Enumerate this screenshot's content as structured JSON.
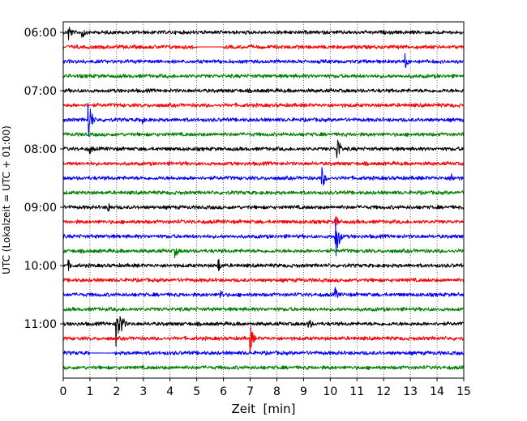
{
  "chart_data": {
    "type": "line",
    "title": "",
    "xlabel": "Zeit  [min]",
    "ylabel": "UTC (Lokalzeit = UTC + 01:00)",
    "xlim": [
      0,
      15
    ],
    "x_ticks": [
      "0",
      "1",
      "2",
      "3",
      "4",
      "5",
      "6",
      "7",
      "8",
      "9",
      "10",
      "11",
      "12",
      "13",
      "14",
      "15"
    ],
    "y_tick_labels": [
      "06:00",
      "07:00",
      "08:00",
      "09:00",
      "10:00",
      "11:00"
    ],
    "grid": "vertical dotted",
    "trace_colors": [
      "#000000",
      "#ff0000",
      "#0000ff",
      "#008000"
    ],
    "traces": [
      {
        "start": "06:00",
        "color_index": 0,
        "events": [
          {
            "t": 0.2,
            "amp": 0.7
          },
          {
            "t": 0.7,
            "amp": 0.6
          }
        ],
        "gaps": []
      },
      {
        "start": "06:15",
        "color_index": 1,
        "events": [],
        "gaps": [
          [
            5.0,
            6.0
          ]
        ]
      },
      {
        "start": "06:30",
        "color_index": 2,
        "events": [
          {
            "t": 12.8,
            "amp": 0.6
          }
        ],
        "gaps": []
      },
      {
        "start": "06:45",
        "color_index": 3,
        "events": [],
        "gaps": []
      },
      {
        "start": "07:00",
        "color_index": 0,
        "events": [],
        "gaps": []
      },
      {
        "start": "07:15",
        "color_index": 1,
        "events": [],
        "gaps": []
      },
      {
        "start": "07:30",
        "color_index": 2,
        "events": [
          {
            "t": 0.95,
            "amp": 1.6
          },
          {
            "t": 2.9,
            "amp": 0.5
          }
        ],
        "gaps": []
      },
      {
        "start": "07:45",
        "color_index": 3,
        "events": [],
        "gaps": []
      },
      {
        "start": "08:00",
        "color_index": 0,
        "events": [
          {
            "t": 10.25,
            "amp": 1.2
          },
          {
            "t": 1.0,
            "amp": 0.4
          }
        ],
        "gaps": []
      },
      {
        "start": "08:15",
        "color_index": 1,
        "events": [],
        "gaps": []
      },
      {
        "start": "08:30",
        "color_index": 2,
        "events": [
          {
            "t": 9.7,
            "amp": 0.8
          },
          {
            "t": 14.5,
            "amp": 0.6
          }
        ],
        "gaps": []
      },
      {
        "start": "08:45",
        "color_index": 3,
        "events": [],
        "gaps": []
      },
      {
        "start": "09:00",
        "color_index": 0,
        "events": [
          {
            "t": 1.7,
            "amp": 0.4
          }
        ],
        "gaps": []
      },
      {
        "start": "09:15",
        "color_index": 1,
        "events": [
          {
            "t": 10.2,
            "amp": 0.5
          }
        ],
        "gaps": []
      },
      {
        "start": "09:30",
        "color_index": 2,
        "events": [
          {
            "t": 10.2,
            "amp": 1.8
          }
        ],
        "gaps": []
      },
      {
        "start": "09:45",
        "color_index": 3,
        "events": [
          {
            "t": 4.2,
            "amp": 0.5
          }
        ],
        "gaps": []
      },
      {
        "start": "10:00",
        "color_index": 0,
        "events": [
          {
            "t": 5.8,
            "amp": 0.6
          },
          {
            "t": 0.2,
            "amp": 0.4
          }
        ],
        "gaps": []
      },
      {
        "start": "10:15",
        "color_index": 1,
        "events": [],
        "gaps": []
      },
      {
        "start": "10:30",
        "color_index": 2,
        "events": [
          {
            "t": 10.2,
            "amp": 0.5
          },
          {
            "t": 5.9,
            "amp": 0.4
          }
        ],
        "gaps": []
      },
      {
        "start": "10:45",
        "color_index": 3,
        "events": [],
        "gaps": []
      },
      {
        "start": "11:00",
        "color_index": 0,
        "events": [
          {
            "t": 2.0,
            "amp": 1.8
          },
          {
            "t": 2.2,
            "amp": 0.7
          },
          {
            "t": 9.2,
            "amp": 0.5
          }
        ],
        "gaps": []
      },
      {
        "start": "11:15",
        "color_index": 1,
        "events": [
          {
            "t": 7.0,
            "amp": 1.1
          }
        ],
        "gaps": []
      },
      {
        "start": "11:30",
        "color_index": 2,
        "events": [],
        "gaps": [
          [
            1.0,
            1.9
          ]
        ]
      },
      {
        "start": "11:45",
        "color_index": 3,
        "events": [],
        "gaps": []
      }
    ]
  }
}
